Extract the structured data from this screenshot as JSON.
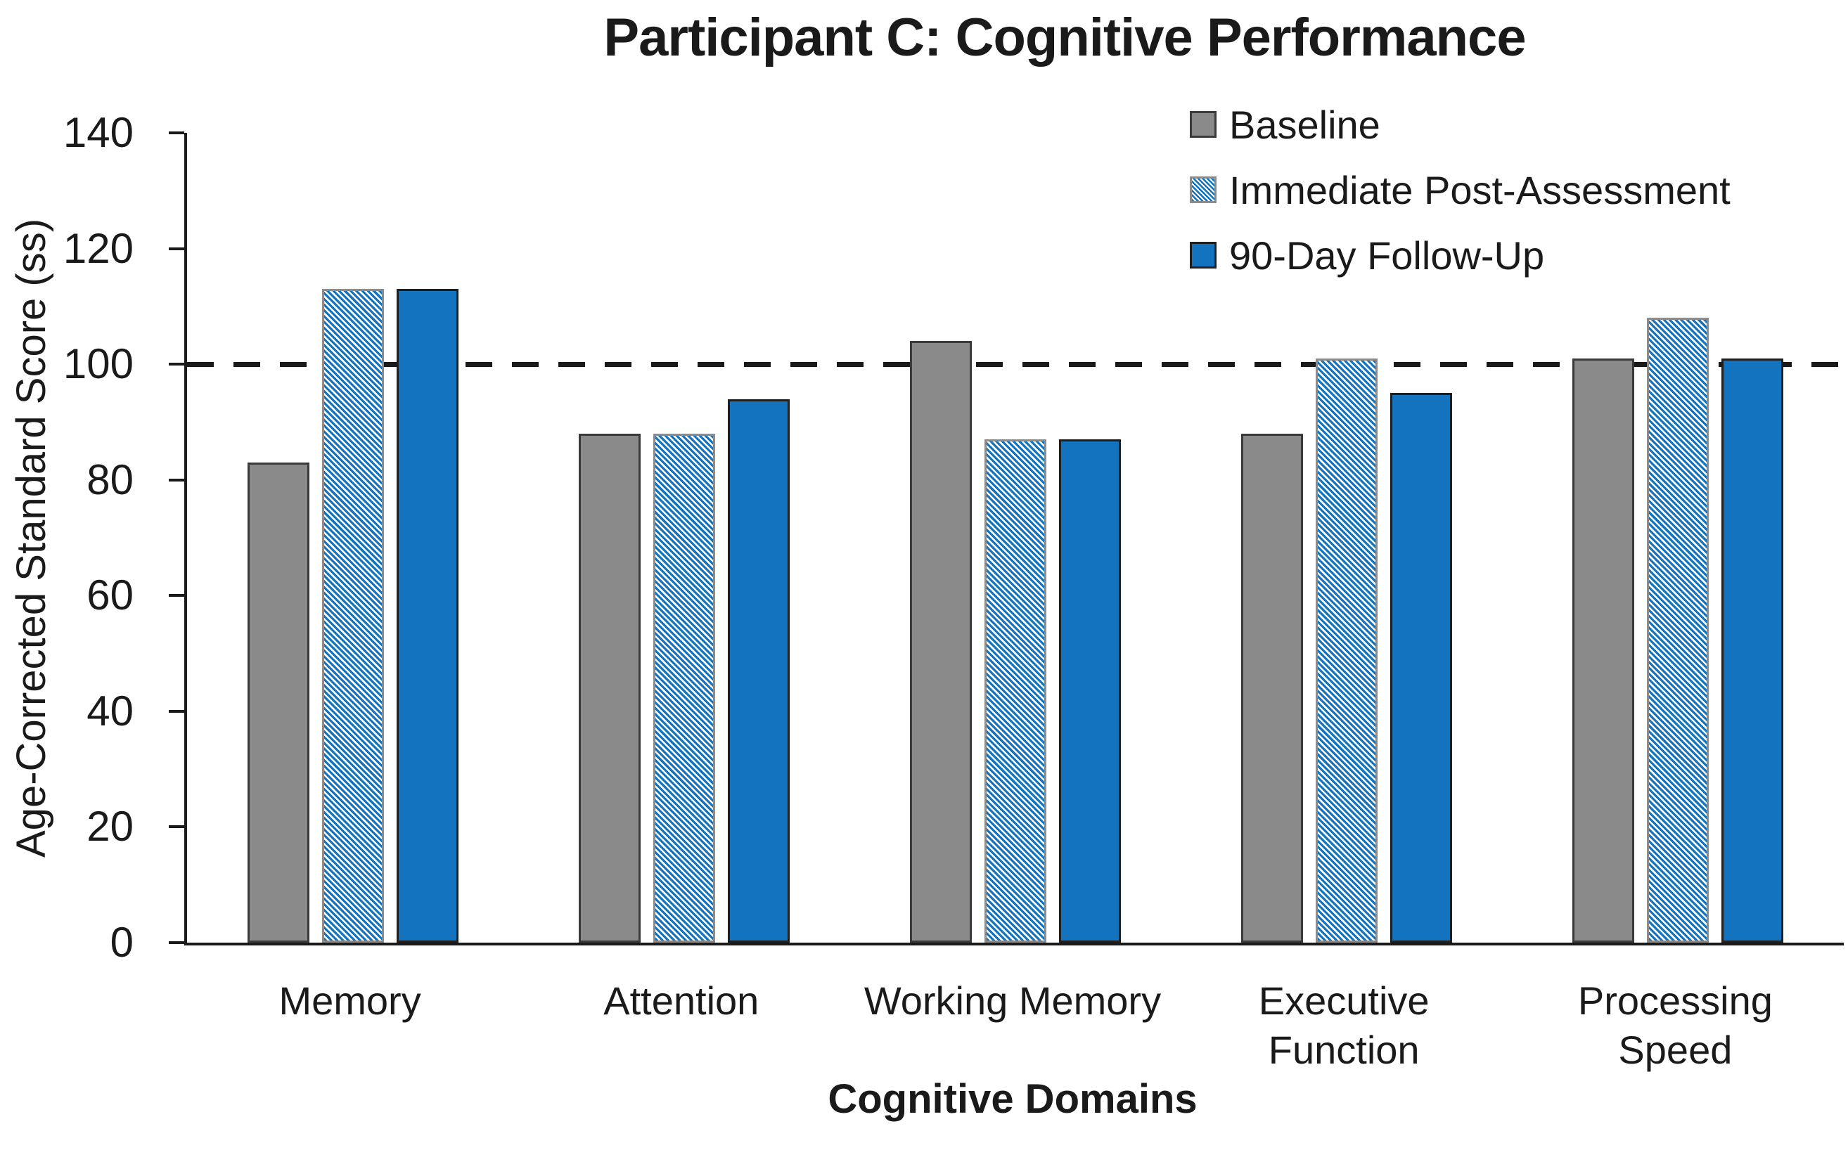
{
  "figure": {
    "title": "Participant C: Cognitive Performance"
  },
  "chart_data": {
    "type": "bar",
    "title": "Participant C: Cognitive Performance",
    "xlabel": "Cognitive Domains",
    "ylabel": "Age-Corrected Standard Score (ss)",
    "categories": [
      "Memory",
      "Attention",
      "Working Memory",
      "Executive\nFunction",
      "Processing\nSpeed"
    ],
    "series": [
      {
        "name": "Baseline",
        "values": [
          83,
          88,
          104,
          88,
          101
        ],
        "pattern": "solid",
        "fill": "#8A8A8A",
        "border": "#3A3A3A"
      },
      {
        "name": "Immediate Post-Assessment",
        "values": [
          113,
          88,
          87,
          101,
          108
        ],
        "pattern": "diagonal-hatch",
        "fill": "#FFFFFF",
        "stripe": "#1373BE",
        "border": "#8C8C8C"
      },
      {
        "name": "90-Day Follow-Up",
        "values": [
          113,
          94,
          87,
          95,
          101
        ],
        "pattern": "solid",
        "fill": "#1373BE",
        "border": "#1F1F1F"
      }
    ],
    "ylim": [
      0,
      140
    ],
    "yticks": [
      0,
      20,
      40,
      60,
      80,
      100,
      120,
      140
    ],
    "reference_line": {
      "y": 100,
      "style": "dashed",
      "color": "#1A1A1A"
    },
    "grid": false,
    "legend_position": "top-right",
    "axis_color": "#1A1A1A"
  }
}
